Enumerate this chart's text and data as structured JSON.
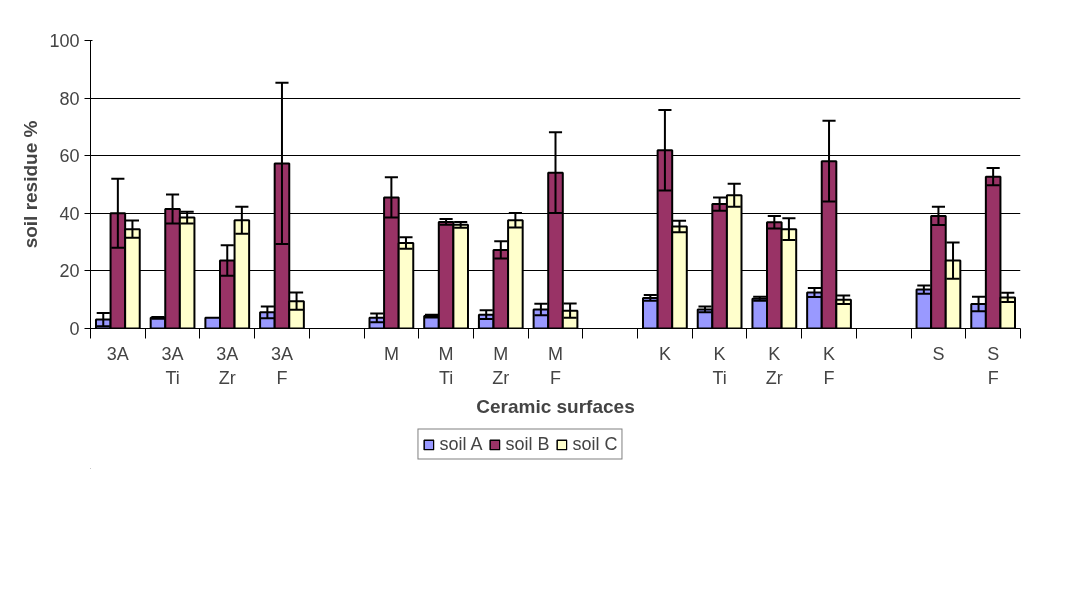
{
  "chart_data": {
    "type": "bar",
    "xlabel": "Ceramic surfaces",
    "ylabel": "soil residue %",
    "categories": [
      "3A",
      "3A\nTi",
      "3A\nZr",
      "3A\nF",
      null,
      "M",
      "M\nTi",
      "M\nZr",
      "M\nF",
      null,
      "K",
      "K\nTi",
      "K\nZr",
      "K\nF",
      null,
      "S",
      "S\nF"
    ],
    "series": [
      {
        "name": "soil A",
        "color": "#9999ff",
        "values": [
          3.1,
          3.7,
          3.7,
          5.6,
          null,
          3.7,
          4.3,
          4.8,
          6.6,
          null,
          10.6,
          6.6,
          10.3,
          12.5,
          null,
          13.5,
          8.5
        ],
        "errors": [
          2.3,
          0.3,
          null,
          2,
          null,
          1.5,
          0.5,
          1.5,
          2,
          null,
          1,
          1,
          0.7,
          1.6,
          null,
          1.4,
          2.5
        ]
      },
      {
        "name": "soil B",
        "color": "#993366",
        "values": [
          40,
          41.5,
          23.6,
          57.3,
          null,
          45.5,
          37,
          27.3,
          54.1,
          null,
          61.9,
          43.2,
          36.9,
          58.1,
          null,
          39.1,
          52.7
        ],
        "errors": [
          12,
          5,
          5.3,
          28,
          null,
          7,
          1,
          3,
          14,
          null,
          14,
          2.3,
          2.2,
          14,
          null,
          3.2,
          3
        ]
      },
      {
        "name": "soil C",
        "color": "#ffffcc",
        "values": [
          34.5,
          38.5,
          37.6,
          9.5,
          null,
          29.7,
          36,
          37.6,
          6.2,
          null,
          35.4,
          46.3,
          34.5,
          10,
          null,
          23.6,
          10.8
        ],
        "errors": [
          3,
          2,
          4.7,
          3,
          null,
          2,
          1,
          2.5,
          2.5,
          null,
          2,
          4,
          3.8,
          1.5,
          null,
          6.3,
          1.6
        ]
      }
    ],
    "ylim": [
      0,
      100
    ],
    "yticks": [
      0,
      20,
      40,
      60,
      80,
      100
    ],
    "grid": "y",
    "legend": "bottom"
  }
}
